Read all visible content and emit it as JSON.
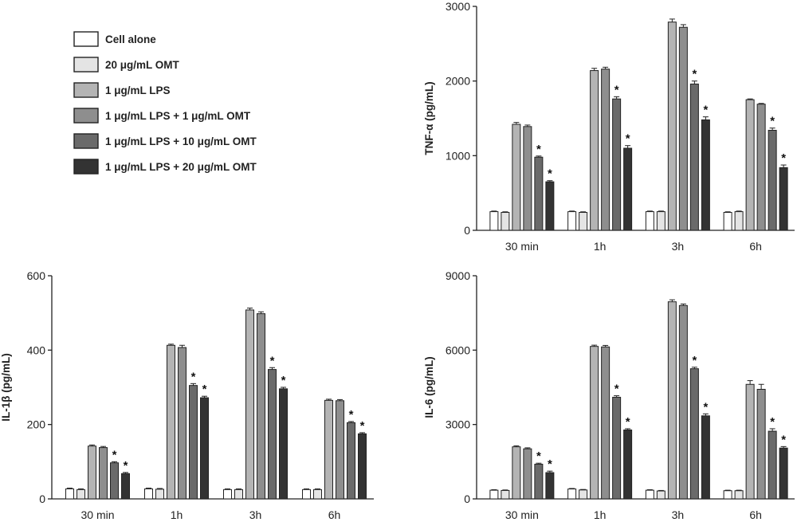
{
  "series_colors": [
    "#ffffff",
    "#e4e4e4",
    "#b4b4b4",
    "#8e8e8e",
    "#6a6a6a",
    "#333333"
  ],
  "chart_data": [
    {
      "type": "bar",
      "id": "tnf",
      "categories": [
        "30 min",
        "1h",
        "3h",
        "6h"
      ],
      "ylabel": "TNF-α (pg/mL)",
      "ylim": [
        0,
        3000
      ],
      "yticks": [
        "0",
        "1000",
        "2000",
        "3000"
      ],
      "series": [
        {
          "name": "Cell alone",
          "values": [
            250,
            250,
            250,
            240
          ],
          "errors": [
            8,
            8,
            8,
            8
          ]
        },
        {
          "name": "20 μg/mL OMT",
          "values": [
            240,
            240,
            250,
            250
          ],
          "errors": [
            8,
            8,
            8,
            8
          ]
        },
        {
          "name": "1 μg/mL LPS",
          "values": [
            1420,
            2140,
            2790,
            1750
          ],
          "errors": [
            25,
            30,
            40,
            10
          ]
        },
        {
          "name": "1 μg/mL LPS + 1 μg/mL OMT",
          "values": [
            1390,
            2160,
            2720,
            1690
          ],
          "errors": [
            20,
            25,
            35,
            10
          ]
        },
        {
          "name": "1 μg/mL LPS + 10 μg/mL OMT",
          "values": [
            980,
            1760,
            1960,
            1340
          ],
          "errors": [
            15,
            30,
            40,
            30
          ]
        },
        {
          "name": "1 μg/mL LPS + 20 μg/mL OMT",
          "values": [
            650,
            1100,
            1480,
            840
          ],
          "errors": [
            15,
            35,
            40,
            35
          ]
        }
      ],
      "significant_series": [
        4,
        5
      ]
    },
    {
      "type": "bar",
      "id": "il1b",
      "categories": [
        "30 min",
        "1h",
        "3h",
        "6h"
      ],
      "ylabel": "IL-1β (pg/mL)",
      "ylim": [
        0,
        600
      ],
      "yticks": [
        "0",
        "200",
        "400",
        "600"
      ],
      "series": [
        {
          "name": "Cell alone",
          "values": [
            27,
            27,
            25,
            25
          ],
          "errors": [
            2,
            2,
            2,
            2
          ]
        },
        {
          "name": "20 μg/mL OMT",
          "values": [
            25,
            26,
            25,
            25
          ],
          "errors": [
            2,
            2,
            2,
            2
          ]
        },
        {
          "name": "1 μg/mL LPS",
          "values": [
            142,
            413,
            508,
            265
          ],
          "errors": [
            3,
            3,
            5,
            3
          ]
        },
        {
          "name": "1 μg/mL LPS + 1 μg/mL OMT",
          "values": [
            138,
            407,
            498,
            264
          ],
          "errors": [
            3,
            6,
            5,
            3
          ]
        },
        {
          "name": "1 μg/mL LPS + 10 μg/mL OMT",
          "values": [
            97,
            305,
            348,
            205
          ],
          "errors": [
            3,
            5,
            5,
            3
          ]
        },
        {
          "name": "1 μg/mL LPS + 20 μg/mL OMT",
          "values": [
            68,
            272,
            296,
            175
          ],
          "errors": [
            3,
            4,
            4,
            3
          ]
        }
      ],
      "significant_series": [
        4,
        5
      ]
    },
    {
      "type": "bar",
      "id": "il6",
      "categories": [
        "30 min",
        "1h",
        "3h",
        "6h"
      ],
      "ylabel": "IL-6 (pg/mL)",
      "ylim": [
        0,
        9000
      ],
      "yticks": [
        "0",
        "3000",
        "6000",
        "9000"
      ],
      "series": [
        {
          "name": "Cell alone",
          "values": [
            350,
            400,
            350,
            330
          ],
          "errors": [
            20,
            20,
            20,
            20
          ]
        },
        {
          "name": "20 μg/mL OMT",
          "values": [
            340,
            360,
            320,
            330
          ],
          "errors": [
            20,
            20,
            20,
            20
          ]
        },
        {
          "name": "1 μg/mL LPS",
          "values": [
            2100,
            6150,
            7950,
            4620
          ],
          "errors": [
            40,
            50,
            80,
            150
          ]
        },
        {
          "name": "1 μg/mL LPS + 1 μg/mL OMT",
          "values": [
            2020,
            6130,
            7800,
            4420
          ],
          "errors": [
            40,
            60,
            60,
            200
          ]
        },
        {
          "name": "1 μg/mL LPS + 10 μg/mL OMT",
          "values": [
            1400,
            4100,
            5250,
            2730
          ],
          "errors": [
            40,
            60,
            60,
            100
          ]
        },
        {
          "name": "1 μg/mL LPS + 20 μg/mL OMT",
          "values": [
            1060,
            2780,
            3350,
            2050
          ],
          "errors": [
            60,
            50,
            80,
            60
          ]
        }
      ],
      "significant_series": [
        4,
        5
      ]
    }
  ]
}
